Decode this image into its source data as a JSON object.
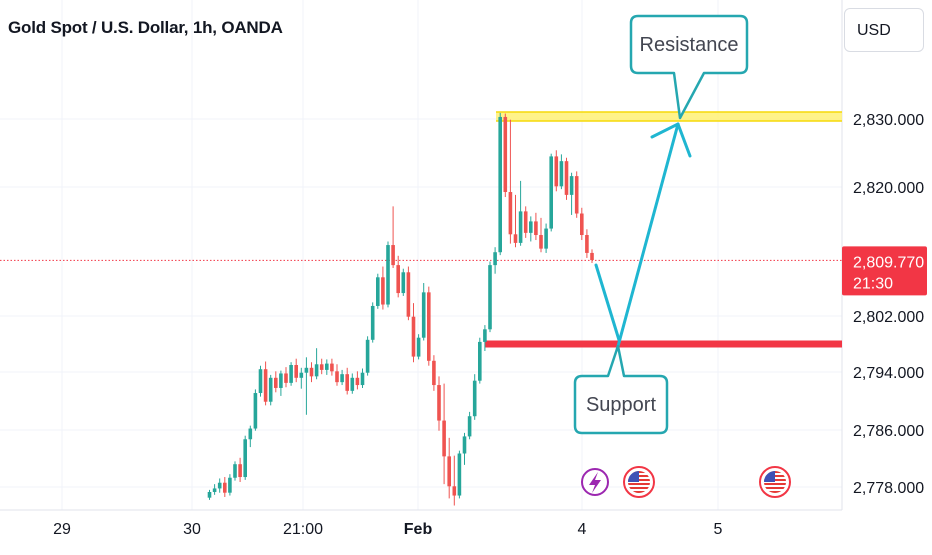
{
  "header": {
    "symbol_title": "Gold Spot / U.S. Dollar, 1h, OANDA",
    "currency": "USD"
  },
  "colors": {
    "up": "#26a69a",
    "down": "#ef5350",
    "resistance_zone": "#fff176",
    "support_line": "#f23645",
    "arrow": "#1fb6d1",
    "callout_border": "#25a7b0",
    "price_badge": "#f23645",
    "current_price_line": "#f23645",
    "event_lightning": "#9c27b0"
  },
  "chart_data": {
    "type": "candlestick",
    "y_axis": {
      "range": [
        2774.5,
        2837.5
      ],
      "tick_labels": [
        "2,830.000",
        "2,820.000",
        "2,802.000",
        "2,794.000",
        "2,786.000",
        "2,778.000"
      ],
      "tick_values": [
        2830,
        2820,
        2802,
        2794,
        2786,
        2778
      ]
    },
    "x_axis": {
      "tick_labels": [
        "29",
        "30",
        "21:00",
        "Feb",
        "4",
        "5"
      ],
      "bold_labels": [
        "Feb"
      ]
    },
    "current_price": {
      "price": "2,809.770",
      "countdown": "21:30",
      "value": 2809.77
    },
    "annotations": {
      "resistance_label": "Resistance",
      "support_label": "Support",
      "resistance_level": 2830.3,
      "support_level": 2798.0
    },
    "candles": [
      [
        2776.5,
        2777.6,
        2776.2,
        2777.3
      ],
      [
        2777.3,
        2778.4,
        2776.9,
        2777.8
      ],
      [
        2777.8,
        2779.2,
        2777.2,
        2778.6
      ],
      [
        2778.6,
        2779.4,
        2776.6,
        2777.2
      ],
      [
        2777.2,
        2779.8,
        2776.8,
        2779.3
      ],
      [
        2779.3,
        2781.6,
        2778.9,
        2781.2
      ],
      [
        2781.2,
        2782.1,
        2778.7,
        2779.4
      ],
      [
        2779.4,
        2785.2,
        2779.0,
        2784.7
      ],
      [
        2784.7,
        2786.6,
        2783.6,
        2786.2
      ],
      [
        2786.2,
        2791.6,
        2785.9,
        2791.1
      ],
      [
        2791.1,
        2794.9,
        2790.6,
        2794.4
      ],
      [
        2794.4,
        2795.5,
        2789.4,
        2789.9
      ],
      [
        2789.9,
        2793.6,
        2789.4,
        2793.2
      ],
      [
        2793.2,
        2794.1,
        2791.2,
        2791.8
      ],
      [
        2791.8,
        2794.2,
        2790.7,
        2793.8
      ],
      [
        2793.8,
        2794.7,
        2791.9,
        2792.5
      ],
      [
        2792.5,
        2795.4,
        2792.1,
        2795.0
      ],
      [
        2795.0,
        2795.9,
        2792.6,
        2793.2
      ],
      [
        2793.2,
        2794.6,
        2791.7,
        2793.9
      ],
      [
        2793.9,
        2796.1,
        2788.1,
        2794.6
      ],
      [
        2794.6,
        2795.4,
        2792.6,
        2793.4
      ],
      [
        2793.4,
        2797.4,
        2793.0,
        2795.1
      ],
      [
        2795.1,
        2795.9,
        2793.7,
        2794.3
      ],
      [
        2794.3,
        2795.8,
        2793.6,
        2795.2
      ],
      [
        2795.2,
        2795.9,
        2793.5,
        2794.1
      ],
      [
        2794.1,
        2795.1,
        2792.1,
        2792.6
      ],
      [
        2792.6,
        2794.3,
        2792.2,
        2793.7
      ],
      [
        2793.7,
        2794.6,
        2790.9,
        2791.4
      ],
      [
        2791.4,
        2793.8,
        2791.0,
        2793.2
      ],
      [
        2793.2,
        2794.1,
        2791.6,
        2792.2
      ],
      [
        2792.2,
        2794.5,
        2791.8,
        2793.9
      ],
      [
        2793.9,
        2799.1,
        2793.5,
        2798.6
      ],
      [
        2798.6,
        2803.9,
        2798.2,
        2803.4
      ],
      [
        2803.4,
        2807.9,
        2803.0,
        2807.4
      ],
      [
        2807.4,
        2808.9,
        2802.9,
        2803.6
      ],
      [
        2803.6,
        2812.4,
        2803.2,
        2811.9
      ],
      [
        2811.9,
        2817.3,
        2808.7,
        2809.1
      ],
      [
        2809.1,
        2810.4,
        2804.6,
        2805.2
      ],
      [
        2805.2,
        2808.6,
        2804.8,
        2808.1
      ],
      [
        2808.1,
        2808.9,
        2801.4,
        2801.9
      ],
      [
        2801.9,
        2803.8,
        2795.4,
        2796.2
      ],
      [
        2796.2,
        2799.4,
        2795.8,
        2798.9
      ],
      [
        2798.9,
        2806.6,
        2798.5,
        2805.3
      ],
      [
        2805.3,
        2806.1,
        2794.9,
        2795.6
      ],
      [
        2795.6,
        2796.4,
        2791.4,
        2792.2
      ],
      [
        2792.2,
        2793.4,
        2785.9,
        2787.3
      ],
      [
        2787.3,
        2792.4,
        2778.4,
        2782.3
      ],
      [
        2782.3,
        2784.9,
        2776.4,
        2778.1
      ],
      [
        2778.1,
        2782.4,
        2775.4,
        2776.8
      ],
      [
        2776.8,
        2783.1,
        2776.4,
        2782.7
      ],
      [
        2782.7,
        2785.6,
        2781.1,
        2785.1
      ],
      [
        2785.1,
        2788.5,
        2784.7,
        2787.9
      ],
      [
        2787.9,
        2793.7,
        2787.4,
        2792.8
      ],
      [
        2792.8,
        2798.9,
        2792.4,
        2798.3
      ],
      [
        2798.3,
        2800.7,
        2797.0,
        2800.1
      ],
      [
        2800.1,
        2809.6,
        2799.7,
        2809.1
      ],
      [
        2809.1,
        2811.6,
        2807.9,
        2810.9
      ],
      [
        2810.9,
        2830.9,
        2810.5,
        2830.3
      ],
      [
        2830.3,
        2830.8,
        2818.6,
        2819.3
      ],
      [
        2819.3,
        2829.9,
        2812.1,
        2813.4
      ],
      [
        2813.4,
        2818.9,
        2811.6,
        2812.2
      ],
      [
        2812.2,
        2820.9,
        2811.8,
        2816.6
      ],
      [
        2816.6,
        2817.3,
        2812.9,
        2813.6
      ],
      [
        2813.6,
        2815.9,
        2812.4,
        2815.2
      ],
      [
        2815.2,
        2816.4,
        2812.6,
        2813.3
      ],
      [
        2813.3,
        2815.7,
        2810.9,
        2811.4
      ],
      [
        2811.4,
        2814.9,
        2810.8,
        2814.2
      ],
      [
        2814.2,
        2824.9,
        2813.8,
        2824.5
      ],
      [
        2824.5,
        2825.4,
        2819.4,
        2820.1
      ],
      [
        2820.1,
        2824.8,
        2819.7,
        2823.8
      ],
      [
        2823.8,
        2824.3,
        2818.2,
        2818.9
      ],
      [
        2818.9,
        2822.1,
        2816.1,
        2821.6
      ],
      [
        2821.6,
        2822.3,
        2815.7,
        2816.3
      ],
      [
        2816.3,
        2817.1,
        2812.6,
        2813.3
      ],
      [
        2813.3,
        2814.1,
        2810.1,
        2810.8
      ],
      [
        2810.8,
        2811.3,
        2809.4,
        2809.8
      ]
    ]
  }
}
